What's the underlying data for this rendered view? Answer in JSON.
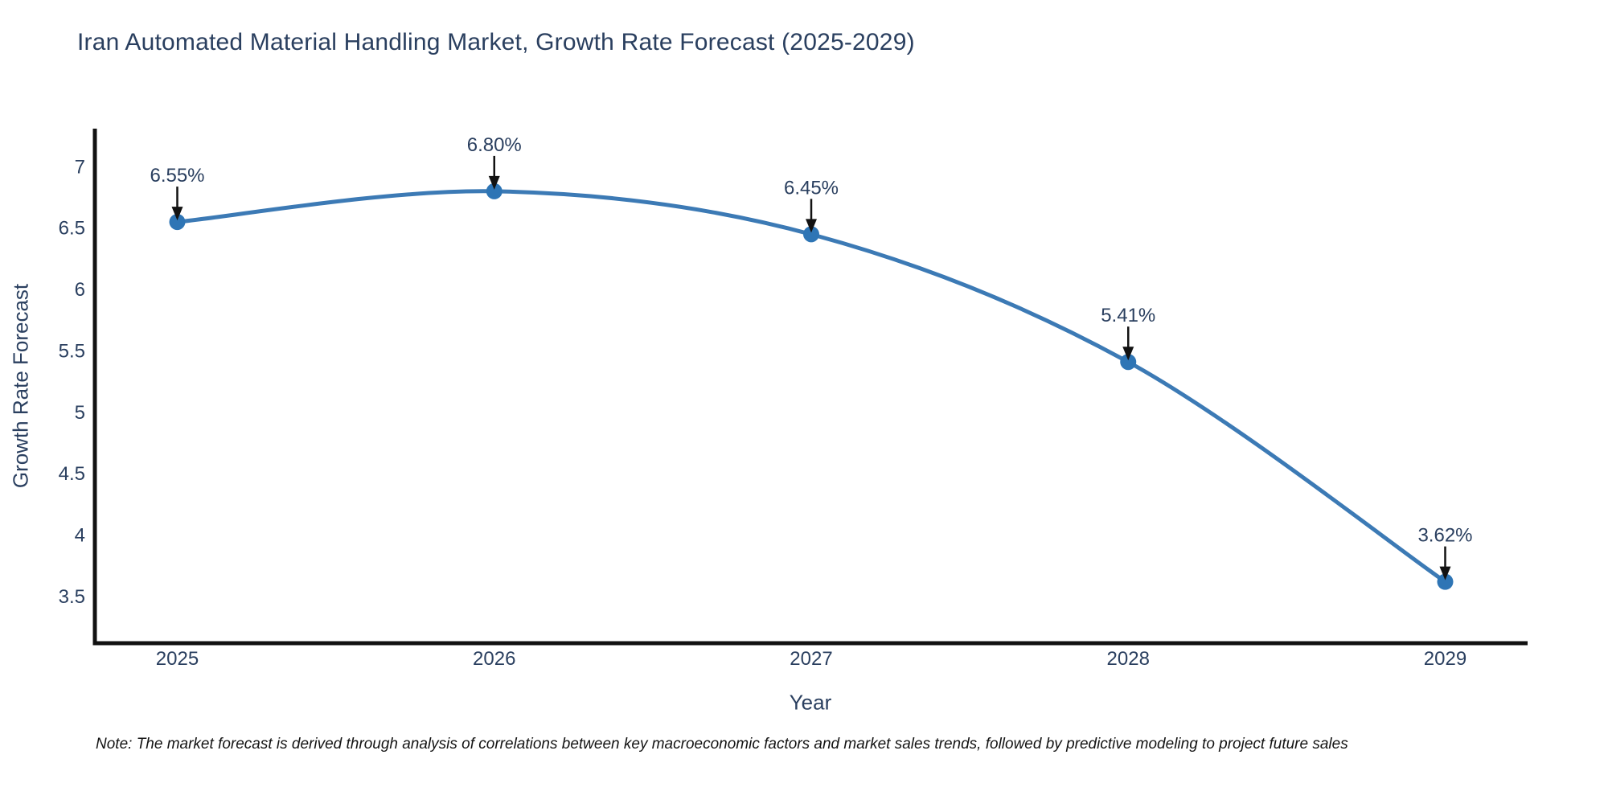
{
  "note": {
    "text": "Note: The market forecast is derived through analysis of correlations between key macroeconomic factors and market sales trends, followed by predictive modeling to project future sales"
  },
  "chart_data": {
    "type": "line",
    "title": "Iran Automated Material Handling Market, Growth Rate Forecast (2025-2029)",
    "xlabel": "Year",
    "ylabel": "Growth Rate Forecast",
    "x": [
      2025,
      2026,
      2027,
      2028,
      2029
    ],
    "values": [
      6.55,
      6.8,
      6.45,
      5.41,
      3.62
    ],
    "point_labels": [
      "6.55%",
      "6.80%",
      "6.45%",
      "5.41%",
      "3.62%"
    ],
    "x_tick_labels": [
      "2025",
      "2026",
      "2027",
      "2028",
      "2029"
    ],
    "y_ticks": [
      7,
      6.5,
      6,
      5.5,
      5,
      4.5,
      4,
      3.5
    ],
    "y_tick_labels": [
      "7",
      "6.5",
      "6",
      "5.5",
      "5",
      "4.5",
      "4",
      "3.5"
    ],
    "xlim": [
      2024.74,
      2029.26
    ],
    "ylim": [
      3.12,
      7.31
    ],
    "grid": false,
    "legend_position": "none",
    "line_shape": "spline",
    "colors": {
      "line": "#3c7ab5",
      "marker": "#2e75b5",
      "arrow": "#121212",
      "axis": "#111111",
      "text": "#2a3f5f",
      "note": "#141414",
      "background": "#ffffff"
    }
  }
}
